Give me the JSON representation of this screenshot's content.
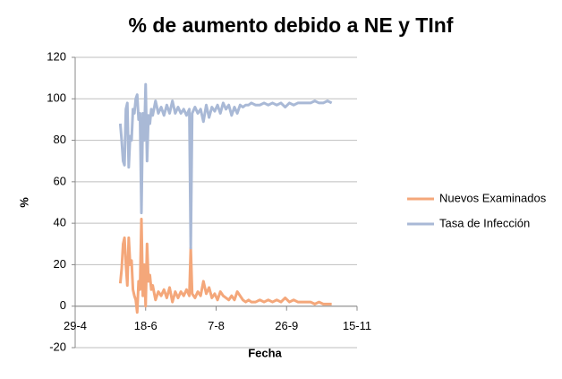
{
  "chart_data": {
    "type": "line",
    "title": "% de aumento debido a NE y TInf",
    "x_label": "Fecha",
    "y_label": "%",
    "x": [
      "31-5",
      "1-6",
      "2-6",
      "3-6",
      "4-6",
      "5-6",
      "6-6",
      "7-6",
      "8-6",
      "9-6",
      "10-6",
      "11-6",
      "12-6",
      "13-6",
      "14-6",
      "15-6",
      "16-6",
      "17-6",
      "18-6",
      "19-6",
      "20-6",
      "21-6",
      "22-6",
      "23-6",
      "25-6",
      "27-6",
      "29-6",
      "1-7",
      "3-7",
      "5-7",
      "7-7",
      "9-7",
      "11-7",
      "13-7",
      "15-7",
      "17-7",
      "19-7",
      "20-7",
      "21-7",
      "23-7",
      "25-7",
      "27-7",
      "29-7",
      "31-7",
      "2-8",
      "4-8",
      "6-8",
      "8-8",
      "10-8",
      "12-8",
      "14-8",
      "16-8",
      "18-8",
      "20-8",
      "22-8",
      "24-8",
      "26-8",
      "28-8",
      "30-8",
      "1-9",
      "4-9",
      "7-9",
      "10-9",
      "13-9",
      "16-9",
      "19-9",
      "22-9",
      "25-9",
      "28-9",
      "1-10",
      "4-10",
      "7-10",
      "10-10",
      "13-10",
      "16-10",
      "19-10",
      "22-10",
      "25-10",
      "28-10"
    ],
    "series": [
      {
        "name": "Nuevos Examinados",
        "color": "#f4a77a",
        "values": [
          11,
          18,
          30,
          33,
          20,
          10,
          33,
          20,
          22,
          8,
          5,
          3,
          -3,
          12,
          8,
          42,
          5,
          20,
          0,
          30,
          12,
          15,
          8,
          10,
          3,
          7,
          5,
          8,
          4,
          9,
          2,
          7,
          4,
          7,
          5,
          8,
          5,
          28,
          6,
          4,
          7,
          5,
          12,
          6,
          9,
          4,
          6,
          3,
          7,
          5,
          4,
          3,
          5,
          3,
          7,
          5,
          3,
          2,
          3,
          2,
          2,
          3,
          2,
          3,
          2,
          3,
          2,
          4,
          2,
          3,
          2,
          2,
          2,
          2,
          1,
          2,
          1,
          1,
          1
        ]
      },
      {
        "name": "Tasa de Infección",
        "color": "#a9b9d6",
        "values": [
          88,
          80,
          70,
          68,
          95,
          98,
          67,
          82,
          80,
          95,
          93,
          100,
          102,
          90,
          93,
          45,
          93,
          80,
          107,
          70,
          92,
          88,
          95,
          92,
          99,
          93,
          96,
          92,
          97,
          93,
          99,
          93,
          96,
          93,
          95,
          92,
          95,
          28,
          93,
          96,
          93,
          95,
          89,
          97,
          91,
          96,
          94,
          97,
          93,
          98,
          95,
          97,
          92,
          96,
          93,
          97,
          96,
          97,
          97,
          98,
          97,
          97,
          98,
          97,
          98,
          97,
          98,
          96,
          98,
          97,
          98,
          98,
          98,
          98,
          99,
          98,
          98,
          99,
          98
        ]
      }
    ],
    "xlim": [
      "29-4",
      "15-11"
    ],
    "xticks": [
      "29-4",
      "18-6",
      "7-8",
      "26-9",
      "15-11"
    ],
    "ylim": [
      -20,
      120
    ],
    "yticks": [
      -20,
      0,
      20,
      40,
      60,
      80,
      100,
      120
    ],
    "grid": true,
    "legend": "right"
  }
}
